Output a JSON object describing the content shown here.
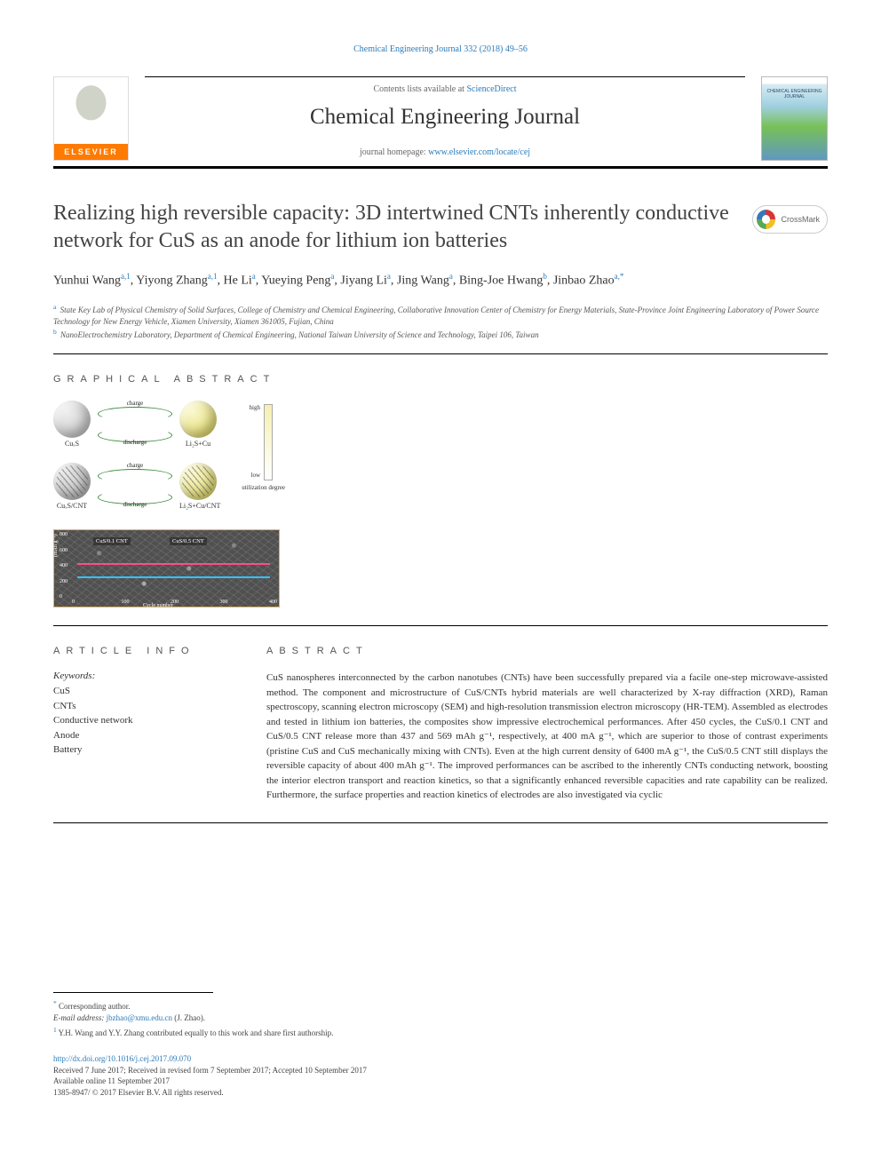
{
  "running_header": "Chemical Engineering Journal 332 (2018) 49–56",
  "masthead": {
    "contents_prefix": "Contents lists available at ",
    "contents_link": "ScienceDirect",
    "journal_title": "Chemical Engineering Journal",
    "homepage_prefix": "journal homepage: ",
    "homepage_link": "www.elsevier.com/locate/cej",
    "publisher_logo_text": "ELSEVIER",
    "cover_label": "CHEMICAL ENGINEERING JOURNAL"
  },
  "crossmark_label": "CrossMark",
  "article_title": "Realizing high reversible capacity: 3D intertwined CNTs inherently conductive network for CuS as an anode for lithium ion batteries",
  "authors_html": "Yunhui Wang<sup>a,1</sup>, Yiyong Zhang<sup>a,1</sup>, He Li<sup>a</sup>, Yueying Peng<sup>a</sup>, Jiyang Li<sup>a</sup>, Jing Wang<sup>a</sup>, Bing-Joe Hwang<sup>b</sup>, Jinbao Zhao<sup>a,*</sup>",
  "affiliations": [
    {
      "sup": "a",
      "text": "State Key Lab of Physical Chemistry of Solid Surfaces, College of Chemistry and Chemical Engineering, Collaborative Innovation Center of Chemistry for Energy Materials, State-Province Joint Engineering Laboratory of Power Source Technology for New Energy Vehicle, Xiamen University, Xiamen 361005, Fujian, China"
    },
    {
      "sup": "b",
      "text": "NanoElectrochemistry Laboratory, Department of Chemical Engineering, National Taiwan University of Science and Technology, Taipei 106, Taiwan"
    }
  ],
  "sections": {
    "graphical_abstract": "GRAPHICAL ABSTRACT",
    "article_info": "ARTICLE INFO",
    "abstract": "ABSTRACT"
  },
  "graphical_abstract": {
    "row1_left": "CuₓS",
    "row1_right": "Li₂S+Cu",
    "row2_left": "CuₓS/CNT",
    "row2_right": "Li₂S+Cu/CNT",
    "arrow_charge": "charge",
    "arrow_discharge": "discharge",
    "gradient_high": "high",
    "gradient_low": "low",
    "gradient_caption": "utilization degree",
    "sem": {
      "y_ticks": [
        "800",
        "600",
        "400",
        "200",
        "0"
      ],
      "x_ticks": [
        "0",
        "100",
        "200",
        "300",
        "400"
      ],
      "y_label": "(mAh g⁻¹)",
      "x_label": "Cycle number",
      "legend_a": "CuS/0.1 CNT",
      "legend_b": "CuS/0.5 CNT",
      "line_a_color": "#33c2ff",
      "line_b_color": "#ff4d88",
      "line_a_y": 52,
      "line_b_y": 37
    }
  },
  "keywords_label": "Keywords:",
  "keywords": [
    "CuS",
    "CNTs",
    "Conductive network",
    "Anode",
    "Battery"
  ],
  "abstract_text": "CuS nanospheres interconnected by the carbon nanotubes (CNTs) have been successfully prepared via a facile one-step microwave-assisted method. The component and microstructure of CuS/CNTs hybrid materials are well characterized by X-ray diffraction (XRD), Raman spectroscopy, scanning electron microscopy (SEM) and high-resolution transmission electron microscopy (HR-TEM). Assembled as electrodes and tested in lithium ion batteries, the composites show impressive electrochemical performances. After 450 cycles, the CuS/0.1 CNT and CuS/0.5 CNT release more than 437 and 569 mAh g⁻¹, respectively, at 400 mA g⁻¹, which are superior to those of contrast experiments (pristine CuS and CuS mechanically mixing with CNTs). Even at the high current density of 6400 mA g⁻¹, the CuS/0.5 CNT still displays the reversible capacity of about 400 mAh g⁻¹. The improved performances can be ascribed to the inherently CNTs conducting network, boosting the interior electron transport and reaction kinetics, so that a significantly enhanced reversible capacities and rate capability can be realized. Furthermore, the surface properties and reaction kinetics of electrodes are also investigated via cyclic",
  "footer": {
    "corr_marker": "*",
    "corr_text": "Corresponding author.",
    "email_label": "E-mail address: ",
    "email": "jbzhao@xmu.edu.cn",
    "email_suffix": " (J. Zhao).",
    "note1_sup": "1",
    "note1_text": " Y.H. Wang and Y.Y. Zhang contributed equally to this work and share first authorship.",
    "doi": "http://dx.doi.org/10.1016/j.cej.2017.09.070",
    "dates": "Received 7 June 2017; Received in revised form 7 September 2017; Accepted 10 September 2017",
    "online": "Available online 11 September 2017",
    "copyright": "1385-8947/ © 2017 Elsevier B.V. All rights reserved."
  }
}
